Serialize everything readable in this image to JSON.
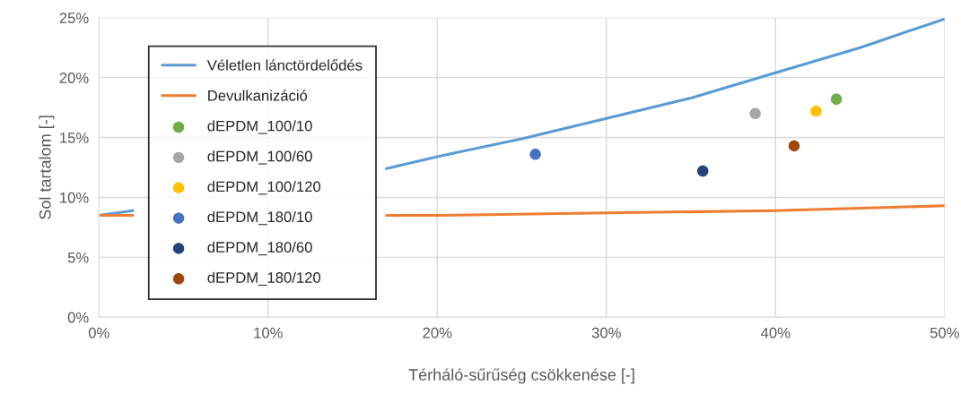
{
  "chart_data": {
    "type": "scatter",
    "xlabel": "Térháló-sűrűség csökkenése [-]",
    "ylabel": "Sol tartalom [-]",
    "xlim": [
      0,
      50
    ],
    "ylim": [
      0,
      25
    ],
    "xticks": [
      {
        "value": 0,
        "label": "0%"
      },
      {
        "value": 10,
        "label": "10%"
      },
      {
        "value": 20,
        "label": "20%"
      },
      {
        "value": 30,
        "label": "30%"
      },
      {
        "value": 40,
        "label": "40%"
      },
      {
        "value": 50,
        "label": "50%"
      }
    ],
    "yticks": [
      {
        "value": 0,
        "label": "0%"
      },
      {
        "value": 5,
        "label": "5%"
      },
      {
        "value": 10,
        "label": "10%"
      },
      {
        "value": 15,
        "label": "15%"
      },
      {
        "value": 20,
        "label": "20%"
      },
      {
        "value": 25,
        "label": "25%"
      }
    ],
    "grid": true,
    "legend": "left",
    "marker": "circle",
    "series": [
      {
        "name": "Véletlen lánctördelődés",
        "type": "line",
        "marker": "none",
        "color": "#5b9bd5",
        "x": [
          0,
          2,
          9,
          17,
          20,
          25,
          30,
          35,
          40,
          45,
          50
        ],
        "values": [
          8.5,
          8.9,
          null,
          12.4,
          13.4,
          14.9,
          16.6,
          18.3,
          20.4,
          22.5,
          24.9
        ]
      },
      {
        "name": "Devulkanizáció",
        "type": "line",
        "marker": "none",
        "color": "#ed7d31",
        "x": [
          0,
          2,
          9,
          17,
          20,
          30,
          40,
          50
        ],
        "values": [
          8.5,
          8.5,
          null,
          8.5,
          8.5,
          8.7,
          8.9,
          9.3
        ]
      },
      {
        "name": "dEPDM_100/10",
        "color": "#70ad47",
        "x": [
          43.6
        ],
        "values": [
          18.2
        ]
      },
      {
        "name": "dEPDM_100/60",
        "color": "#a5a5a5",
        "x": [
          38.8
        ],
        "values": [
          17.0
        ]
      },
      {
        "name": "dEPDM_100/120",
        "color": "#ffc000",
        "x": [
          42.4
        ],
        "values": [
          17.2
        ]
      },
      {
        "name": "dEPDM_180/10",
        "color": "#4472c4",
        "x": [
          25.8
        ],
        "values": [
          13.6
        ]
      },
      {
        "name": "dEPDM_180/60",
        "color": "#264478",
        "x": [
          35.7
        ],
        "values": [
          12.2
        ]
      },
      {
        "name": "dEPDM_180/120",
        "color": "#9e480e",
        "x": [
          41.1
        ],
        "values": [
          14.3
        ]
      }
    ]
  }
}
